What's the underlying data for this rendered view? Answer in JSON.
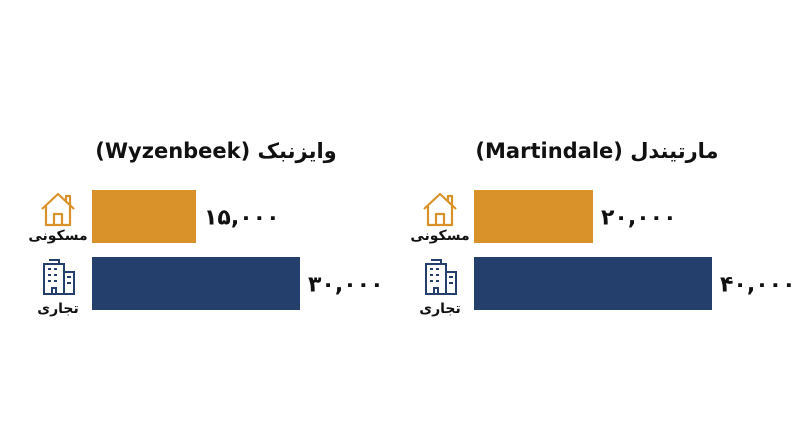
{
  "chart_data": [
    {
      "type": "bar",
      "orientation": "horizontal",
      "title": "وایزنبک (Wyzenbeek)",
      "categories": [
        "مسکونی",
        "تجاری"
      ],
      "values": [
        15000,
        30000
      ],
      "value_labels": [
        "۱۵,۰۰۰",
        "۳۰,۰۰۰"
      ],
      "colors": [
        "#d9922a",
        "#243f6b"
      ]
    },
    {
      "type": "bar",
      "orientation": "horizontal",
      "title": "مارتیندل (Martindale)",
      "categories": [
        "مسکونی",
        "تجاری"
      ],
      "values": [
        20000,
        40000
      ],
      "value_labels": [
        "۲۰,۰۰۰",
        "۴۰,۰۰۰"
      ],
      "colors": [
        "#d9922a",
        "#243f6b"
      ]
    }
  ]
}
